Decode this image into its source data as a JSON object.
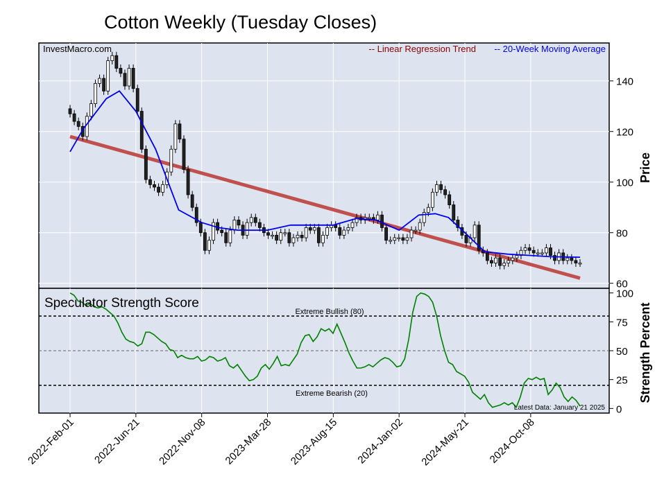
{
  "chart_data": [
    {
      "type": "candlestick",
      "title": "Cotton Weekly (Tuesday Closes)",
      "source_label": "InvestMacro.com",
      "ylabel": "Price",
      "ylim": [
        58,
        155
      ],
      "yticks": [
        60,
        80,
        100,
        120,
        140
      ],
      "x_tick_labels": [
        "2022-Feb-01",
        "2022-Jun-21",
        "2022-Nov-08",
        "2023-Mar-28",
        "2023-Aug-15",
        "2024-Jan-02",
        "2024-May-21",
        "2024-Oct-08"
      ],
      "legend": [
        {
          "label": "-- Linear Regression Trend",
          "color": "#8b0000"
        },
        {
          "label": "-- 20-Week Moving Average",
          "color": "#0000ee"
        }
      ],
      "legend_position": "top-right",
      "grid": true,
      "weekly_closes": [
        127,
        124,
        122,
        118,
        126,
        131,
        139,
        141,
        136,
        148,
        150,
        145,
        143,
        138,
        145,
        137,
        128,
        113,
        101,
        99,
        98,
        96,
        99,
        104,
        113,
        123,
        117,
        105,
        95,
        90,
        84,
        80,
        73,
        77,
        84,
        81,
        80,
        76,
        81,
        85,
        83,
        79,
        84,
        86,
        84,
        82,
        80,
        79,
        79,
        77,
        80,
        80,
        76,
        78,
        79,
        78,
        82,
        81,
        82,
        76,
        79,
        82,
        83,
        82,
        79,
        81,
        82,
        84,
        86,
        85,
        86,
        86,
        85,
        87,
        82,
        77,
        77,
        78,
        78,
        77,
        78,
        81,
        81,
        84,
        88,
        90,
        96,
        99,
        97,
        95,
        91,
        85,
        82,
        79,
        76,
        78,
        83,
        73,
        72,
        69,
        68,
        70,
        67,
        68,
        69,
        70,
        71,
        73,
        74,
        73,
        72,
        72,
        72,
        74,
        71,
        69,
        72,
        69,
        70,
        69,
        68,
        68
      ],
      "moving_average_20w": [
        [
          "2022-Feb-01",
          112
        ],
        [
          "2022-Mar-01",
          121
        ],
        [
          "2022-Apr-19",
          133
        ],
        [
          "2022-May-17",
          136
        ],
        [
          "2022-Jun-21",
          128
        ],
        [
          "2022-Aug-02",
          113
        ],
        [
          "2022-Sep-20",
          89
        ],
        [
          "2022-Nov-08",
          84
        ],
        [
          "2022-Dec-13",
          82
        ],
        [
          "2023-Jan-24",
          81
        ],
        [
          "2023-Mar-28",
          81
        ],
        [
          "2023-May-16",
          83
        ],
        [
          "2023-Jun-27",
          83
        ],
        [
          "2023-Aug-15",
          83
        ],
        [
          "2023-Oct-03",
          85.6
        ],
        [
          "2023-Nov-14",
          85
        ],
        [
          "2024-Jan-02",
          81
        ],
        [
          "2024-Feb-13",
          87
        ],
        [
          "2024-Mar-19",
          87.5
        ],
        [
          "2024-Apr-16",
          86
        ],
        [
          "2024-May-21",
          80
        ],
        [
          "2024-Jul-02",
          72.5
        ],
        [
          "2024-Aug-20",
          71.5
        ],
        [
          "2024-Oct-08",
          71
        ],
        [
          "2024-Nov-19",
          70.5
        ],
        [
          "2025-Jan-21",
          70.3
        ]
      ],
      "linear_regression": [
        [
          "2022-Feb-01",
          118
        ],
        [
          "2025-Jan-21",
          62
        ]
      ]
    },
    {
      "type": "line",
      "title": "Speculator Strength Score",
      "ylabel": "Strength Percent",
      "ylim": [
        -4,
        104
      ],
      "yticks": [
        0,
        25,
        50,
        75,
        100
      ],
      "reference_lines": [
        {
          "value": 80,
          "label": "Extreme Bullish (80)"
        },
        {
          "value": 50,
          "label": ""
        },
        {
          "value": 20,
          "label": "Extreme Bearish (20)"
        }
      ],
      "latest_data_label": "Latest Data: January 21 2025",
      "series": [
        {
          "color": "#008000",
          "values": [
            100,
            98,
            93,
            92,
            89,
            91,
            88,
            87,
            88,
            86,
            83,
            80,
            74,
            66,
            60,
            58,
            57,
            54,
            56,
            66,
            66,
            64,
            61,
            58,
            56,
            51,
            50,
            44,
            46,
            44,
            43,
            43,
            45,
            41,
            42,
            45,
            44,
            41,
            42,
            44,
            37,
            35,
            38,
            33,
            28,
            24,
            25,
            28,
            35,
            38,
            34,
            39,
            45,
            37,
            38,
            37,
            42,
            47,
            57,
            63,
            64,
            58,
            62,
            69,
            67,
            69,
            65,
            73,
            65,
            57,
            48,
            41,
            35,
            35,
            36,
            38,
            36,
            39,
            42,
            44,
            43,
            40,
            36,
            37,
            43,
            60,
            83,
            97,
            100,
            99,
            97,
            92,
            80,
            63,
            50,
            40,
            38,
            32,
            30,
            28,
            23,
            14,
            11,
            8,
            12,
            5,
            1,
            2,
            3,
            5,
            3,
            5,
            1,
            10,
            22,
            26,
            25,
            27,
            25,
            26,
            12,
            16,
            22,
            18,
            10,
            6,
            10,
            7,
            2
          ]
        }
      ]
    }
  ]
}
